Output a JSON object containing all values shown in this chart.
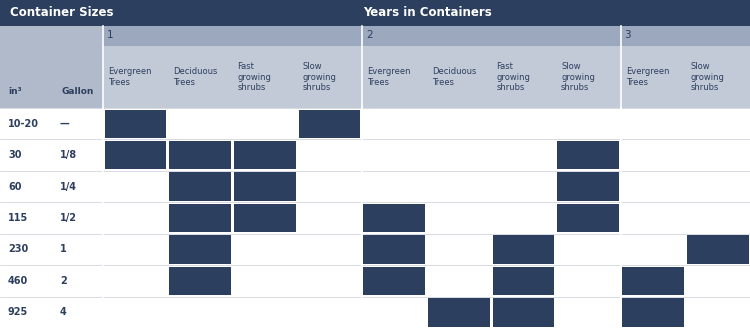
{
  "title_left": "Container Sizes",
  "title_right": "Years in Containers",
  "header_bg": "#2d3f5e",
  "header_text_color": "#ffffff",
  "subheader1_bg": "#9ba8be",
  "subheader2_bg": "#b0bacb",
  "col_header_bg": "#c2cad8",
  "cell_fill": "#2d3f5e",
  "border_color": "#c8cdd6",
  "text_color": "#2d3f5e",
  "row_labels_in3": [
    "10-20",
    "30",
    "60",
    "115",
    "230",
    "460",
    "925"
  ],
  "row_labels_gal": [
    "—",
    "1/8",
    "1/4",
    "1/2",
    "1",
    "2",
    "4"
  ],
  "col_labels": [
    "Evergreen\nTrees",
    "Deciduous\nTrees",
    "Fast\ngrowing\nshrubs",
    "Slow\ngrowing\nshrubs",
    "Evergreen\nTrees",
    "Deciduous\nTrees",
    "Fast\ngrowing\nshrubs",
    "Slow\ngrowing\nshrubs",
    "Evergreen\nTrees",
    "Slow\ngrowing\nshrubs"
  ],
  "group_labels": [
    "1",
    "2",
    "3"
  ],
  "group_col_starts": [
    0,
    4,
    8
  ],
  "group_col_counts": [
    4,
    4,
    2
  ],
  "filled": {
    "0": [
      0,
      3
    ],
    "1": [
      0,
      1,
      2,
      7
    ],
    "2": [
      1,
      2,
      7
    ],
    "3": [
      1,
      2,
      4,
      7
    ],
    "4": [
      1,
      4,
      6,
      9
    ],
    "5": [
      1,
      4,
      6,
      8
    ],
    "6": [
      5,
      6,
      8
    ]
  },
  "figsize": [
    7.5,
    3.28
  ],
  "dpi": 100
}
